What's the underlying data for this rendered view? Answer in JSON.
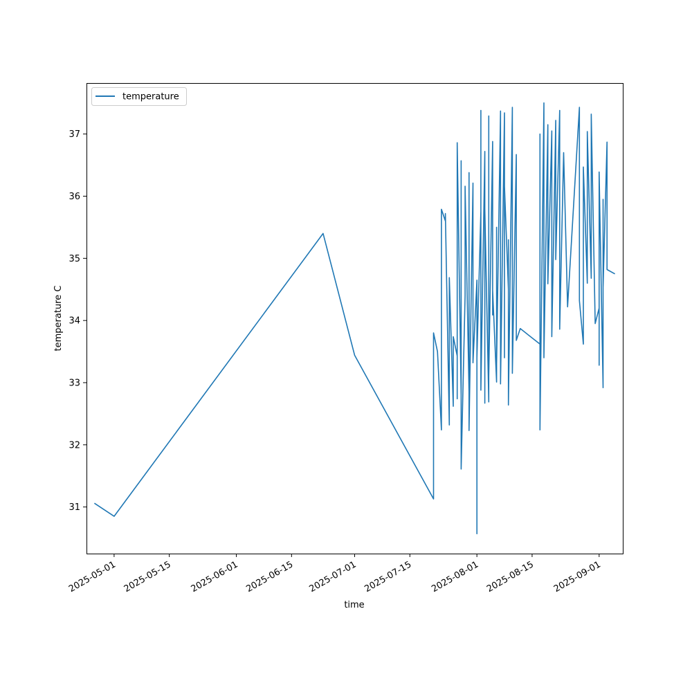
{
  "chart_data": {
    "type": "line",
    "title": "",
    "xlabel": "time",
    "ylabel": "temperature C",
    "x_type": "date",
    "xlim": [
      "2025-04-24",
      "2025-09-07"
    ],
    "ylim": [
      30.25,
      37.82
    ],
    "x_ticks": [
      "2025-05-01",
      "2025-05-15",
      "2025-06-01",
      "2025-06-15",
      "2025-07-01",
      "2025-07-15",
      "2025-08-01",
      "2025-08-15",
      "2025-09-01"
    ],
    "y_ticks": [
      31,
      32,
      33,
      34,
      35,
      36,
      37
    ],
    "grid": false,
    "legend": {
      "position": "top-left",
      "entries": [
        "temperature"
      ]
    },
    "series": [
      {
        "name": "temperature",
        "color": "#1f77b4",
        "points": [
          [
            "2025-04-26",
            31.06
          ],
          [
            "2025-05-01",
            30.85
          ],
          [
            "2025-06-23",
            35.4
          ],
          [
            "2025-07-01",
            33.44
          ],
          [
            "2025-07-21",
            31.13
          ],
          [
            "2025-07-21",
            33.8
          ],
          [
            "2025-07-22",
            33.5
          ],
          [
            "2025-07-23",
            32.24
          ],
          [
            "2025-07-23",
            35.79
          ],
          [
            "2025-07-24",
            35.6
          ],
          [
            "2025-07-24",
            35.72
          ],
          [
            "2025-07-25",
            32.32
          ],
          [
            "2025-07-25",
            34.69
          ],
          [
            "2025-07-26",
            32.62
          ],
          [
            "2025-07-26",
            33.74
          ],
          [
            "2025-07-27",
            33.43
          ],
          [
            "2025-07-27",
            32.74
          ],
          [
            "2025-07-27",
            36.86
          ],
          [
            "2025-07-28",
            32.8
          ],
          [
            "2025-07-28",
            36.57
          ],
          [
            "2025-07-28",
            31.61
          ],
          [
            "2025-07-29",
            34.4
          ],
          [
            "2025-07-29",
            36.16
          ],
          [
            "2025-07-30",
            32.85
          ],
          [
            "2025-07-30",
            36.38
          ],
          [
            "2025-07-30",
            32.23
          ],
          [
            "2025-07-31",
            36.21
          ],
          [
            "2025-07-31",
            33.32
          ],
          [
            "2025-08-01",
            34.65
          ],
          [
            "2025-08-01",
            30.57
          ],
          [
            "2025-08-01",
            33.4
          ],
          [
            "2025-08-02",
            35.76
          ],
          [
            "2025-08-02",
            37.38
          ],
          [
            "2025-08-02",
            33.64
          ],
          [
            "2025-08-02",
            32.88
          ],
          [
            "2025-08-03",
            36.72
          ],
          [
            "2025-08-03",
            32.67
          ],
          [
            "2025-08-03",
            35.8
          ],
          [
            "2025-08-04",
            32.69
          ],
          [
            "2025-08-04",
            37.29
          ],
          [
            "2025-08-04",
            33.1
          ],
          [
            "2025-08-05",
            36.88
          ],
          [
            "2025-08-05",
            34.09
          ],
          [
            "2025-08-05",
            34.49
          ],
          [
            "2025-08-06",
            33.01
          ],
          [
            "2025-08-06",
            35.5
          ],
          [
            "2025-08-06",
            33.3
          ],
          [
            "2025-08-07",
            37.37
          ],
          [
            "2025-08-07",
            33.28
          ],
          [
            "2025-08-07",
            35.4
          ],
          [
            "2025-08-07",
            32.98
          ],
          [
            "2025-08-08",
            37.34
          ],
          [
            "2025-08-08",
            34.55
          ],
          [
            "2025-08-08",
            35.1
          ],
          [
            "2025-08-08",
            33.4
          ],
          [
            "2025-08-08",
            36.16
          ],
          [
            "2025-08-09",
            34.5
          ],
          [
            "2025-08-09",
            35.3
          ],
          [
            "2025-08-09",
            32.64
          ],
          [
            "2025-08-10",
            37.43
          ],
          [
            "2025-08-10",
            33.15
          ],
          [
            "2025-08-11",
            36.67
          ],
          [
            "2025-08-11",
            33.68
          ],
          [
            "2025-08-12",
            33.87
          ],
          [
            "2025-08-17",
            33.62
          ],
          [
            "2025-08-17",
            37.0
          ],
          [
            "2025-08-17",
            32.24
          ],
          [
            "2025-08-18",
            37.5
          ],
          [
            "2025-08-18",
            33.4
          ],
          [
            "2025-08-19",
            37.15
          ],
          [
            "2025-08-19",
            34.59
          ],
          [
            "2025-08-20",
            37.05
          ],
          [
            "2025-08-20",
            33.74
          ],
          [
            "2025-08-21",
            37.22
          ],
          [
            "2025-08-21",
            34.98
          ],
          [
            "2025-08-22",
            37.38
          ],
          [
            "2025-08-22",
            33.86
          ],
          [
            "2025-08-23",
            36.7
          ],
          [
            "2025-08-24",
            34.22
          ],
          [
            "2025-08-27",
            37.43
          ],
          [
            "2025-08-27",
            34.32
          ],
          [
            "2025-08-28",
            33.62
          ],
          [
            "2025-08-28",
            36.47
          ],
          [
            "2025-08-29",
            34.6
          ],
          [
            "2025-08-29",
            35.32
          ],
          [
            "2025-08-29",
            37.04
          ],
          [
            "2025-08-30",
            34.68
          ],
          [
            "2025-08-30",
            37.32
          ],
          [
            "2025-08-31",
            33.95
          ],
          [
            "2025-09-01",
            34.2
          ],
          [
            "2025-09-01",
            33.28
          ],
          [
            "2025-09-01",
            36.39
          ],
          [
            "2025-09-02",
            32.92
          ],
          [
            "2025-09-02",
            35.95
          ],
          [
            "2025-09-02",
            34.53
          ],
          [
            "2025-09-03",
            36.87
          ],
          [
            "2025-09-03",
            34.82
          ],
          [
            "2025-09-05",
            34.75
          ]
        ]
      }
    ]
  }
}
